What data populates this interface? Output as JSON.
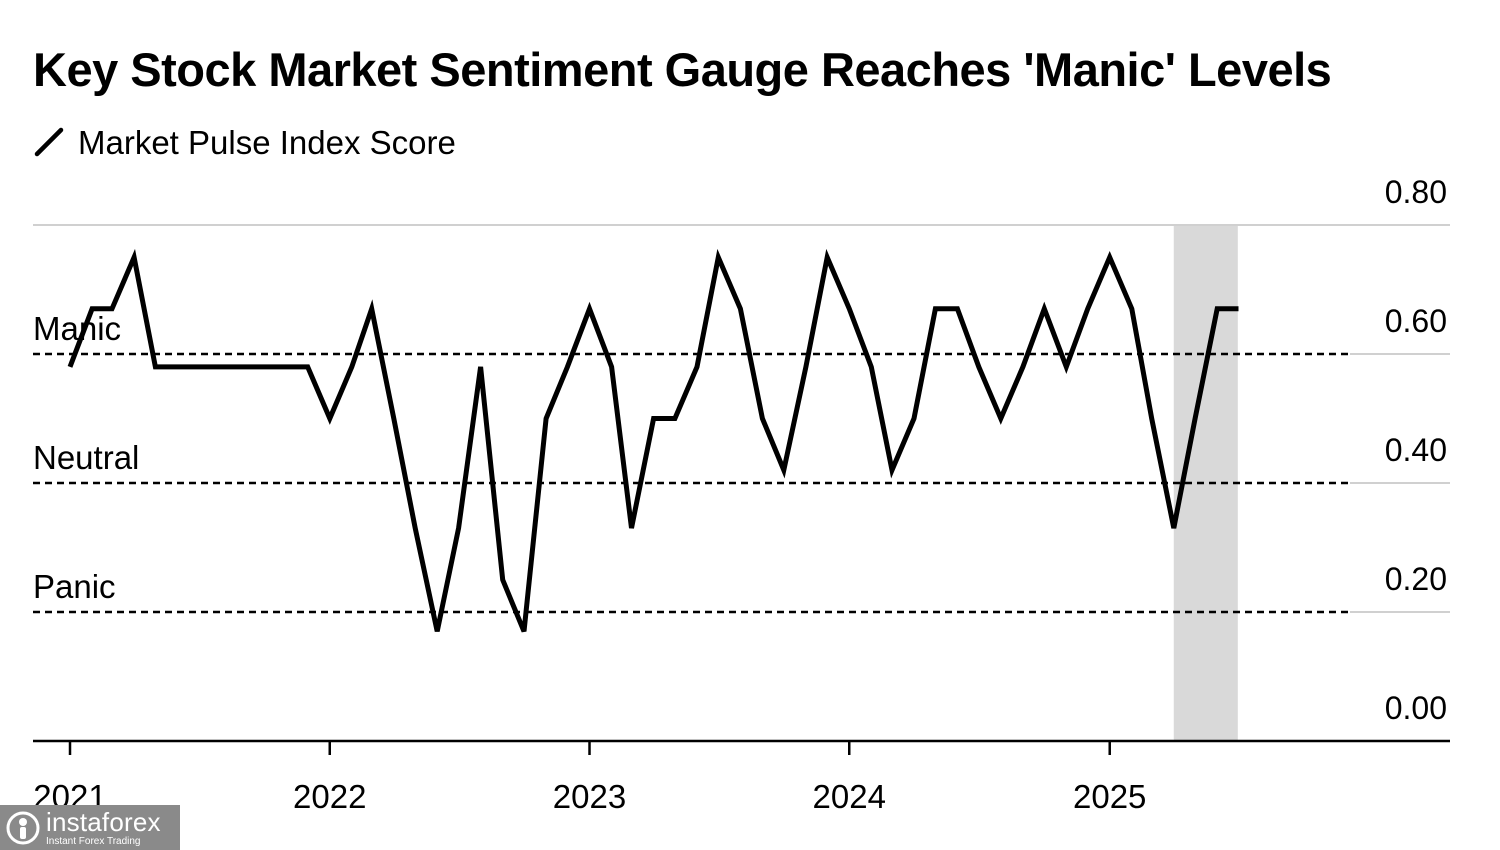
{
  "chart_data": {
    "type": "line",
    "title": "Key Stock Market Sentiment Gauge Reaches 'Manic' Levels",
    "series": [
      {
        "name": "Market Pulse Index Score",
        "color": "#000000",
        "points": [
          [
            "2021-01-01",
            0.58
          ],
          [
            "2021-02-01",
            0.67
          ],
          [
            "2021-03-01",
            0.67
          ],
          [
            "2021-04-01",
            0.75
          ],
          [
            "2021-05-01",
            0.58
          ],
          [
            "2021-06-01",
            0.58
          ],
          [
            "2021-07-01",
            0.58
          ],
          [
            "2021-08-01",
            0.58
          ],
          [
            "2021-09-01",
            0.58
          ],
          [
            "2021-10-01",
            0.58
          ],
          [
            "2021-11-01",
            0.58
          ],
          [
            "2021-12-01",
            0.58
          ],
          [
            "2022-01-01",
            0.5
          ],
          [
            "2022-02-01",
            0.58
          ],
          [
            "2022-03-01",
            0.67
          ],
          [
            "2022-04-01",
            0.5
          ],
          [
            "2022-05-01",
            0.33
          ],
          [
            "2022-06-01",
            0.17
          ],
          [
            "2022-07-01",
            0.33
          ],
          [
            "2022-08-01",
            0.58
          ],
          [
            "2022-09-01",
            0.25
          ],
          [
            "2022-10-01",
            0.17
          ],
          [
            "2022-11-01",
            0.5
          ],
          [
            "2022-12-01",
            0.58
          ],
          [
            "2023-01-01",
            0.67
          ],
          [
            "2023-02-01",
            0.58
          ],
          [
            "2023-03-01",
            0.33
          ],
          [
            "2023-04-01",
            0.5
          ],
          [
            "2023-05-01",
            0.5
          ],
          [
            "2023-06-01",
            0.58
          ],
          [
            "2023-07-01",
            0.75
          ],
          [
            "2023-08-01",
            0.67
          ],
          [
            "2023-09-01",
            0.5
          ],
          [
            "2023-10-01",
            0.42
          ],
          [
            "2023-11-01",
            0.58
          ],
          [
            "2023-12-01",
            0.75
          ],
          [
            "2024-01-01",
            0.67
          ],
          [
            "2024-02-01",
            0.58
          ],
          [
            "2024-03-01",
            0.42
          ],
          [
            "2024-04-01",
            0.5
          ],
          [
            "2024-05-01",
            0.67
          ],
          [
            "2024-06-01",
            0.67
          ],
          [
            "2024-07-01",
            0.58
          ],
          [
            "2024-08-01",
            0.5
          ],
          [
            "2024-09-01",
            0.58
          ],
          [
            "2024-10-01",
            0.67
          ],
          [
            "2024-11-01",
            0.58
          ],
          [
            "2024-12-01",
            0.67
          ],
          [
            "2025-01-01",
            0.75
          ],
          [
            "2025-02-01",
            0.67
          ],
          [
            "2025-03-01",
            0.5
          ],
          [
            "2025-04-01",
            0.33
          ],
          [
            "2025-05-01",
            0.5
          ],
          [
            "2025-06-01",
            0.67
          ],
          [
            "2025-07-01",
            0.67
          ]
        ]
      }
    ],
    "x_axis": {
      "type": "date",
      "range": [
        "2020-11-10",
        "2026-01-20"
      ],
      "tick_labels": [
        {
          "date": "2021-01-01",
          "label": "2021"
        },
        {
          "date": "2022-01-01",
          "label": "2022"
        },
        {
          "date": "2023-01-01",
          "label": "2023"
        },
        {
          "date": "2024-01-01",
          "label": "2024"
        },
        {
          "date": "2025-01-01",
          "label": "2025"
        }
      ]
    },
    "y_axis": {
      "position": "right",
      "range": [
        0,
        0.8
      ],
      "ticks": [
        {
          "value": 0.0,
          "label": "0.00"
        },
        {
          "value": 0.2,
          "label": "0.20"
        },
        {
          "value": 0.4,
          "label": "0.40"
        },
        {
          "value": 0.6,
          "label": "0.60"
        },
        {
          "value": 0.8,
          "label": "0.80"
        }
      ]
    },
    "reference_lines": [
      {
        "value": 0.6,
        "label": "Manic",
        "style": "dashed"
      },
      {
        "value": 0.4,
        "label": "Neutral",
        "style": "dashed"
      },
      {
        "value": 0.2,
        "label": "Panic",
        "style": "dashed"
      }
    ],
    "shaded_region": {
      "from": "2025-04-01",
      "to": "2025-06-30",
      "color": "#d9d9d9"
    },
    "grid": "horizontal",
    "legend": "top-left"
  },
  "watermark": {
    "brand": "instaforex",
    "tagline": "Instant Forex Trading"
  }
}
